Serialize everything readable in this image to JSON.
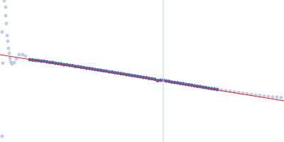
{
  "chart_data": {
    "type": "scatter",
    "xlim": [
      0,
      400
    ],
    "ylim": [
      0,
      200
    ],
    "grid": false,
    "tick_labels": false,
    "series": [
      {
        "type": "scatter",
        "color": "#b9c8e6",
        "marker": "circle",
        "values": [
          [
            6,
            199
          ],
          [
            8,
            190
          ],
          [
            8,
            178
          ],
          [
            9,
            167
          ],
          [
            3,
            155
          ],
          [
            10,
            150
          ],
          [
            11,
            142
          ],
          [
            12,
            132
          ],
          [
            13,
            125
          ],
          [
            14,
            118
          ],
          [
            15,
            113
          ],
          [
            17,
            110
          ],
          [
            20,
            112
          ],
          [
            23,
            117
          ],
          [
            27,
            123
          ],
          [
            32,
            123
          ],
          [
            36,
            121
          ],
          [
            4,
            111
          ],
          [
            3,
            8
          ],
          [
            312,
            73
          ],
          [
            318,
            72.4
          ],
          [
            324,
            71.5
          ],
          [
            330,
            70.5
          ],
          [
            336,
            69.8
          ],
          [
            342,
            68.8
          ],
          [
            348,
            68
          ],
          [
            354,
            67
          ],
          [
            360,
            66.2
          ],
          [
            366,
            65.5
          ],
          [
            372,
            64.6
          ],
          [
            378,
            64
          ],
          [
            384,
            63.4
          ],
          [
            390,
            63
          ],
          [
            396,
            62.5
          ]
        ]
      },
      {
        "type": "scatter",
        "color": "#3a62b0",
        "marker": "circle",
        "values": [
          [
            42,
            116
          ],
          [
            46,
            115.5
          ],
          [
            50,
            115
          ],
          [
            54,
            114.6
          ],
          [
            58,
            114
          ],
          [
            62,
            113.8
          ],
          [
            66,
            113
          ],
          [
            70,
            112.2
          ],
          [
            74,
            112
          ],
          [
            78,
            111
          ],
          [
            82,
            110.4
          ],
          [
            86,
            110
          ],
          [
            90,
            109
          ],
          [
            94,
            108.8
          ],
          [
            98,
            108
          ],
          [
            102,
            107.6
          ],
          [
            106,
            106.5
          ],
          [
            110,
            106.2
          ],
          [
            114,
            105.5
          ],
          [
            118,
            104.8
          ],
          [
            122,
            104
          ],
          [
            126,
            103.6
          ],
          [
            130,
            103
          ],
          [
            134,
            102.2
          ],
          [
            138,
            101.6
          ],
          [
            142,
            101
          ],
          [
            146,
            100.3
          ],
          [
            150,
            99.8
          ],
          [
            154,
            98.8
          ],
          [
            158,
            98.5
          ],
          [
            162,
            97.6
          ],
          [
            166,
            97.2
          ],
          [
            170,
            96.4
          ],
          [
            174,
            95.8
          ],
          [
            178,
            95
          ],
          [
            182,
            94.5
          ],
          [
            186,
            93.6
          ],
          [
            190,
            93.2
          ],
          [
            194,
            92.5
          ],
          [
            198,
            91.8
          ],
          [
            202,
            91
          ],
          [
            206,
            90.6
          ],
          [
            210,
            89.6
          ],
          [
            214,
            89.2
          ],
          [
            218,
            88.4
          ],
          [
            222,
            86.5
          ],
          [
            226,
            87
          ],
          [
            230,
            87.2
          ],
          [
            234,
            86
          ],
          [
            238,
            85.5
          ],
          [
            242,
            84.4
          ],
          [
            246,
            83.8
          ],
          [
            250,
            83.4
          ],
          [
            254,
            82.5
          ],
          [
            258,
            82
          ],
          [
            262,
            81.2
          ],
          [
            266,
            80.6
          ],
          [
            270,
            80
          ],
          [
            274,
            79.2
          ],
          [
            278,
            78.5
          ],
          [
            282,
            78
          ],
          [
            286,
            77.2
          ],
          [
            290,
            76.6
          ],
          [
            294,
            75.8
          ],
          [
            298,
            75.2
          ],
          [
            302,
            74.6
          ],
          [
            306,
            74
          ]
        ]
      },
      {
        "type": "line",
        "color": "#e0231f",
        "marker": "none",
        "values": [
          [
            0,
            123
          ],
          [
            400,
            58
          ]
        ]
      },
      {
        "type": "line",
        "color": "#cdd6e8",
        "marker": "none",
        "values": [
          [
            230,
            0
          ],
          [
            230,
            200
          ]
        ]
      }
    ]
  }
}
